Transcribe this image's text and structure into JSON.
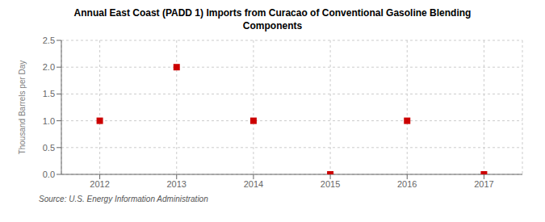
{
  "chart_data": {
    "type": "scatter",
    "title": "Annual East Coast (PADD 1) Imports from Curacao of Conventional Gasoline Blending\nComponents",
    "y_label": "Thousand Barrels per Day",
    "annotations": [
      "Source: U.S. Energy Information Administration"
    ],
    "x": [
      2012,
      2013,
      2014,
      2015,
      2016,
      2017
    ],
    "values": [
      1.0,
      2.0,
      1.0,
      0.0,
      1.0,
      0.0
    ],
    "xlim": [
      2011.5,
      2017.5
    ],
    "ylim": [
      0.0,
      2.5
    ],
    "xticks": [
      2012,
      2013,
      2014,
      2015,
      2016,
      2017
    ],
    "yticks": [
      {
        "value": 0,
        "label": "0.0"
      },
      0.5,
      {
        "value": 1,
        "label": "1.0"
      },
      1.5,
      {
        "value": 2,
        "label": "2.0"
      },
      2.5
    ],
    "color": "#cc0000",
    "marker": "square",
    "grid": true
  }
}
